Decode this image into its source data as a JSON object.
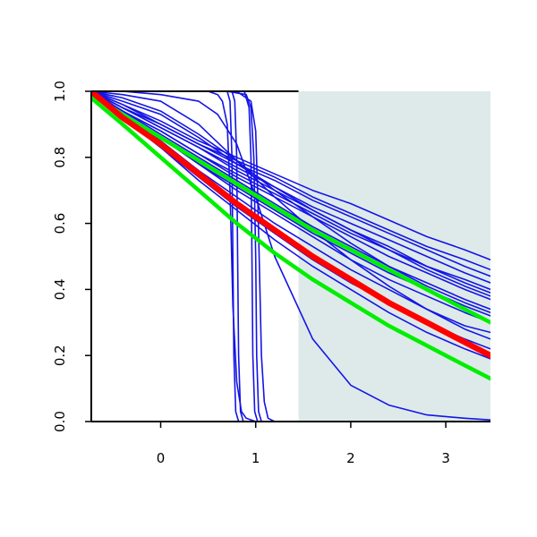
{
  "chart_data": {
    "type": "line",
    "title": "",
    "xlabel": "",
    "ylabel": "",
    "xlim": [
      -0.73,
      3.47
    ],
    "ylim": [
      0.0,
      1.0
    ],
    "x_ticks": [
      0,
      1,
      2,
      3
    ],
    "x_tick_labels": [
      "0",
      "1",
      "2",
      "3"
    ],
    "y_ticks": [
      0.0,
      0.2,
      0.4,
      0.6,
      0.8,
      1.0
    ],
    "y_tick_labels": [
      "0.0",
      "0.2",
      "0.4",
      "0.6",
      "0.8",
      "1.0"
    ],
    "grid": false,
    "legend": "none",
    "shaded_region": {
      "x": [
        1.45,
        3.47
      ],
      "color": "#deeaea"
    },
    "colors": {
      "sample": "#1414e6",
      "mean": "#ff0000",
      "band": "#00ee00",
      "shade": "#deeaea"
    },
    "series": [
      {
        "group": "sample",
        "x": [
          -0.73,
          -0.4,
          0.0,
          0.4,
          0.8,
          1.2,
          1.6,
          2.0,
          2.4,
          2.8,
          3.2,
          3.47
        ],
        "y": [
          1.0,
          0.96,
          0.91,
          0.85,
          0.8,
          0.75,
          0.7,
          0.66,
          0.61,
          0.56,
          0.52,
          0.49
        ]
      },
      {
        "group": "sample",
        "x": [
          -0.73,
          -0.4,
          0.0,
          0.4,
          0.8,
          1.2,
          1.6,
          2.0,
          2.4,
          2.8,
          3.2,
          3.47
        ],
        "y": [
          1.0,
          0.96,
          0.9,
          0.84,
          0.79,
          0.74,
          0.68,
          0.63,
          0.58,
          0.53,
          0.49,
          0.46
        ]
      },
      {
        "group": "sample",
        "x": [
          -0.73,
          -0.4,
          0.0,
          0.4,
          0.8,
          1.2,
          1.6,
          2.0,
          2.4,
          2.8,
          3.2,
          3.47
        ],
        "y": [
          1.0,
          0.95,
          0.9,
          0.84,
          0.78,
          0.73,
          0.67,
          0.62,
          0.57,
          0.52,
          0.47,
          0.44
        ]
      },
      {
        "group": "sample",
        "x": [
          -0.73,
          -0.4,
          0.0,
          0.4,
          0.8,
          1.2,
          1.6,
          2.0,
          2.4,
          2.8,
          3.2,
          3.47
        ],
        "y": [
          1.0,
          0.95,
          0.89,
          0.83,
          0.77,
          0.71,
          0.65,
          0.6,
          0.55,
          0.5,
          0.45,
          0.42
        ]
      },
      {
        "group": "sample",
        "x": [
          -0.73,
          -0.4,
          0.0,
          0.4,
          0.8,
          1.2,
          1.6,
          2.0,
          2.4,
          2.8,
          3.2,
          3.47
        ],
        "y": [
          1.0,
          0.95,
          0.89,
          0.83,
          0.76,
          0.7,
          0.64,
          0.58,
          0.53,
          0.47,
          0.42,
          0.39
        ]
      },
      {
        "group": "sample",
        "x": [
          -0.73,
          -0.4,
          0.0,
          0.4,
          0.8,
          1.2,
          1.6,
          2.0,
          2.4,
          2.8,
          3.2,
          3.47
        ],
        "y": [
          1.0,
          0.94,
          0.88,
          0.81,
          0.74,
          0.68,
          0.62,
          0.56,
          0.5,
          0.45,
          0.4,
          0.37
        ]
      },
      {
        "group": "sample",
        "x": [
          -0.73,
          -0.4,
          0.0,
          0.4,
          0.8,
          1.2,
          1.6,
          2.0,
          2.4,
          2.8,
          3.2,
          3.47
        ],
        "y": [
          1.0,
          0.94,
          0.87,
          0.8,
          0.73,
          0.66,
          0.59,
          0.53,
          0.47,
          0.42,
          0.37,
          0.34
        ]
      },
      {
        "group": "sample",
        "x": [
          -0.73,
          -0.4,
          0.0,
          0.4,
          0.8,
          1.2,
          1.6,
          2.0,
          2.4,
          2.8,
          3.2,
          3.47
        ],
        "y": [
          1.0,
          0.93,
          0.86,
          0.78,
          0.7,
          0.63,
          0.56,
          0.49,
          0.43,
          0.38,
          0.33,
          0.3
        ]
      },
      {
        "group": "sample",
        "x": [
          -0.73,
          -0.4,
          0.0,
          0.4,
          0.8,
          1.2,
          1.6,
          2.0,
          2.4,
          2.8,
          3.2,
          3.47
        ],
        "y": [
          1.0,
          0.93,
          0.85,
          0.76,
          0.68,
          0.6,
          0.53,
          0.46,
          0.4,
          0.34,
          0.29,
          0.27
        ]
      },
      {
        "group": "sample",
        "x": [
          -0.73,
          -0.4,
          0.0,
          0.4,
          0.8,
          1.2,
          1.6,
          2.0,
          2.4,
          2.8,
          3.2,
          3.47
        ],
        "y": [
          1.0,
          0.92,
          0.83,
          0.74,
          0.65,
          0.57,
          0.49,
          0.42,
          0.36,
          0.3,
          0.25,
          0.22
        ]
      },
      {
        "group": "sample",
        "x": [
          -0.73,
          -0.4,
          0.0,
          0.4,
          0.8,
          1.2,
          1.6,
          2.0,
          2.4,
          2.8,
          3.2,
          3.47
        ],
        "y": [
          1.0,
          0.92,
          0.83,
          0.73,
          0.64,
          0.55,
          0.47,
          0.4,
          0.33,
          0.27,
          0.22,
          0.19
        ]
      },
      {
        "group": "sample",
        "x": [
          -0.73,
          -0.4,
          0.0,
          0.4,
          0.8,
          1.2,
          1.6,
          2.0,
          2.4,
          2.8,
          3.2,
          3.47
        ],
        "y": [
          1.0,
          0.97,
          0.93,
          0.86,
          0.78,
          0.71,
          0.64,
          0.58,
          0.52,
          0.46,
          0.41,
          0.38
        ]
      },
      {
        "group": "sample",
        "x": [
          -0.73,
          -0.4,
          0.0,
          0.4,
          0.8,
          1.2,
          1.6,
          2.0,
          2.4,
          2.8,
          3.2,
          3.47
        ],
        "y": [
          1.0,
          0.98,
          0.94,
          0.87,
          0.79,
          0.7,
          0.62,
          0.54,
          0.47,
          0.41,
          0.36,
          0.33
        ]
      },
      {
        "group": "sample",
        "x": [
          -0.73,
          -0.4,
          0.0,
          0.4,
          0.8,
          1.2,
          1.6,
          2.0,
          2.4,
          2.8,
          3.2,
          3.47
        ],
        "y": [
          1.0,
          0.99,
          0.97,
          0.9,
          0.79,
          0.68,
          0.58,
          0.49,
          0.41,
          0.34,
          0.28,
          0.25
        ]
      },
      {
        "group": "sample",
        "x": [
          -0.73,
          -0.4,
          0.0,
          0.4,
          0.8,
          1.2,
          1.6,
          2.0,
          2.4,
          2.8,
          3.2,
          3.47
        ],
        "y": [
          1.0,
          0.94,
          0.88,
          0.81,
          0.75,
          0.69,
          0.63,
          0.57,
          0.52,
          0.47,
          0.43,
          0.4
        ]
      },
      {
        "group": "sample",
        "x": [
          -0.73,
          -0.4,
          0.0,
          0.4,
          0.8,
          1.2,
          1.6,
          2.0,
          2.4,
          2.8,
          3.2,
          3.47
        ],
        "y": [
          1.0,
          0.93,
          0.86,
          0.78,
          0.71,
          0.64,
          0.57,
          0.51,
          0.45,
          0.4,
          0.35,
          0.32
        ]
      },
      {
        "group": "sample",
        "x": [
          -0.73,
          -0.4,
          0.0,
          0.4,
          0.6,
          0.8,
          1.0,
          1.2,
          1.6,
          2.0,
          2.4,
          2.8,
          3.2,
          3.47
        ],
        "y": [
          1.0,
          1.0,
          0.99,
          0.97,
          0.93,
          0.84,
          0.68,
          0.5,
          0.25,
          0.11,
          0.05,
          0.02,
          0.01,
          0.005
        ]
      },
      {
        "group": "sample",
        "x": [
          -0.73,
          0.0,
          0.5,
          0.6,
          0.65,
          0.7,
          0.73,
          0.76,
          0.8,
          0.85,
          0.9,
          1.0,
          3.47
        ],
        "y": [
          1.0,
          1.0,
          1.0,
          0.99,
          0.97,
          0.9,
          0.7,
          0.35,
          0.12,
          0.03,
          0.01,
          0.0,
          0.0
        ]
      },
      {
        "group": "sample",
        "x": [
          -0.73,
          0.5,
          0.7,
          0.73,
          0.75,
          0.76,
          0.77,
          0.79,
          0.82,
          3.47
        ],
        "y": [
          1.0,
          1.0,
          1.0,
          0.97,
          0.8,
          0.5,
          0.2,
          0.03,
          0.0,
          0.0
        ]
      },
      {
        "group": "sample",
        "x": [
          -0.73,
          0.5,
          0.75,
          0.78,
          0.8,
          0.81,
          0.82,
          0.84,
          0.87,
          3.47
        ],
        "y": [
          1.0,
          1.0,
          1.0,
          0.97,
          0.8,
          0.5,
          0.2,
          0.03,
          0.0,
          0.0
        ]
      },
      {
        "group": "sample",
        "x": [
          -0.73,
          0.7,
          0.88,
          0.93,
          0.95,
          0.96,
          0.97,
          0.99,
          1.02,
          3.47
        ],
        "y": [
          1.0,
          1.0,
          1.0,
          0.95,
          0.8,
          0.5,
          0.2,
          0.03,
          0.0,
          0.0
        ]
      },
      {
        "group": "sample",
        "x": [
          -0.73,
          0.7,
          0.9,
          0.95,
          0.98,
          1.0,
          1.01,
          1.03,
          1.06,
          3.47
        ],
        "y": [
          1.0,
          1.0,
          0.99,
          0.95,
          0.8,
          0.5,
          0.2,
          0.03,
          0.0,
          0.0
        ]
      },
      {
        "group": "sample",
        "x": [
          -0.73,
          0.8,
          0.95,
          1.0,
          1.02,
          1.04,
          1.06,
          1.09,
          1.13,
          1.2,
          3.47
        ],
        "y": [
          1.0,
          1.0,
          0.97,
          0.88,
          0.7,
          0.45,
          0.2,
          0.06,
          0.01,
          0.0,
          0.0
        ]
      },
      {
        "group": "band",
        "x": [
          -0.73,
          -0.4,
          0.0,
          0.4,
          0.8,
          1.2,
          1.6,
          2.0,
          2.4,
          2.8,
          3.2,
          3.47
        ],
        "y": [
          0.99,
          0.93,
          0.86,
          0.79,
          0.72,
          0.65,
          0.58,
          0.52,
          0.46,
          0.4,
          0.34,
          0.3
        ]
      },
      {
        "group": "band",
        "x": [
          -0.73,
          -0.4,
          0.0,
          0.4,
          0.8,
          1.2,
          1.6,
          2.0,
          2.4,
          2.8,
          3.2,
          3.47
        ],
        "y": [
          0.98,
          0.9,
          0.8,
          0.7,
          0.6,
          0.51,
          0.43,
          0.36,
          0.29,
          0.23,
          0.17,
          0.13
        ]
      },
      {
        "group": "mean",
        "x": [
          -0.73,
          -0.4,
          0.0,
          0.4,
          0.8,
          1.2,
          1.6,
          2.0,
          2.4,
          2.8,
          3.2,
          3.47
        ],
        "y": [
          1.0,
          0.92,
          0.84,
          0.75,
          0.66,
          0.58,
          0.5,
          0.43,
          0.36,
          0.3,
          0.24,
          0.2
        ]
      }
    ]
  }
}
